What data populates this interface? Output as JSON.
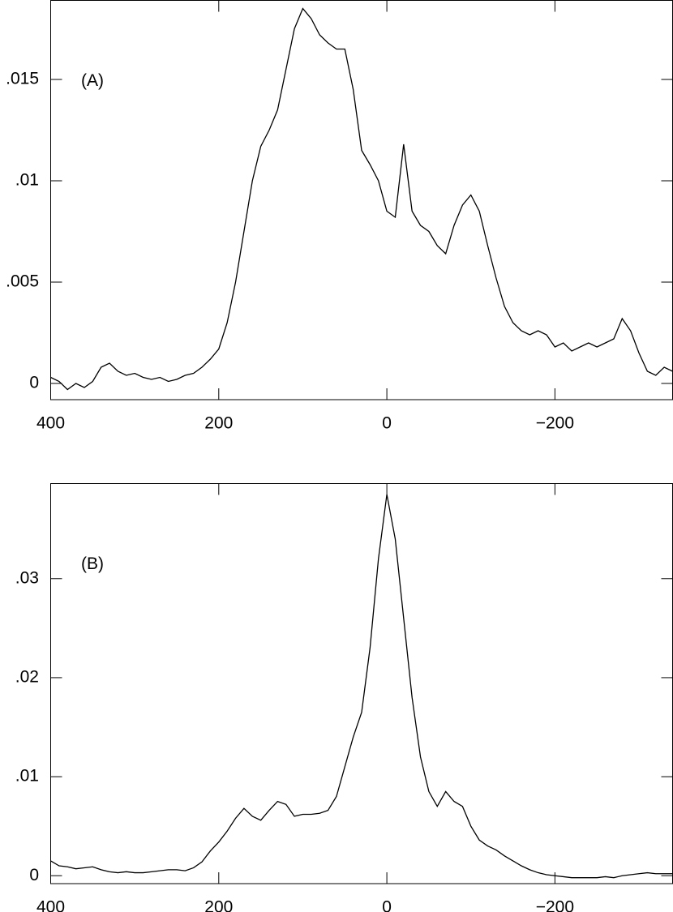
{
  "chart_data": [
    {
      "type": "line",
      "annotation": "(A)",
      "x": [
        400,
        390,
        380,
        370,
        360,
        350,
        340,
        330,
        320,
        310,
        300,
        290,
        280,
        270,
        260,
        250,
        240,
        230,
        220,
        210,
        200,
        190,
        180,
        170,
        160,
        150,
        140,
        130,
        120,
        110,
        100,
        90,
        80,
        70,
        60,
        50,
        40,
        30,
        20,
        10,
        0,
        -10,
        -20,
        -30,
        -40,
        -50,
        -60,
        -70,
        -80,
        -90,
        -100,
        -110,
        -120,
        -130,
        -140,
        -150,
        -160,
        -170,
        -180,
        -190,
        -200,
        -210,
        -220,
        -230,
        -240,
        -250,
        -260,
        -270,
        -280,
        -290,
        -300,
        -310,
        -320,
        -330,
        -340
      ],
      "values": [
        0.0003,
        0.0001,
        -0.0003,
        0,
        -0.0002,
        0.0001,
        0.0008,
        0.001,
        0.0006,
        0.0004,
        0.0005,
        0.0003,
        0.0002,
        0.0003,
        0.0001,
        0.0002,
        0.0004,
        0.0005,
        0.0008,
        0.0012,
        0.0017,
        0.003,
        0.005,
        0.0075,
        0.01,
        0.0117,
        0.0125,
        0.0135,
        0.0155,
        0.0175,
        0.0185,
        0.018,
        0.0172,
        0.0168,
        0.0165,
        0.0165,
        0.0145,
        0.0115,
        0.0108,
        0.01,
        0.0085,
        0.0082,
        0.0118,
        0.0085,
        0.0078,
        0.0075,
        0.0068,
        0.0064,
        0.0078,
        0.0088,
        0.0093,
        0.0085,
        0.0068,
        0.0052,
        0.0038,
        0.003,
        0.0026,
        0.0024,
        0.0026,
        0.0024,
        0.0018,
        0.002,
        0.0016,
        0.0018,
        0.002,
        0.0018,
        0.002,
        0.0022,
        0.0032,
        0.0026,
        0.0015,
        0.0006,
        0.0004,
        0.0008,
        0.0006
      ],
      "color": "#000000",
      "xlim": [
        400,
        -340
      ],
      "xticks": [
        400,
        200,
        0,
        {
          "value": -200,
          "label": "−200"
        }
      ],
      "ylim": [
        -0.0008,
        0.0189
      ],
      "yticks": [
        0,
        {
          "value": 0.005,
          "label": ".005"
        },
        {
          "value": 0.01,
          "label": ".01"
        },
        {
          "value": 0.015,
          "label": ".015"
        }
      ]
    },
    {
      "type": "line",
      "annotation": "(B)",
      "x": [
        400,
        390,
        380,
        370,
        360,
        350,
        340,
        330,
        320,
        310,
        300,
        290,
        280,
        270,
        260,
        250,
        240,
        230,
        220,
        210,
        200,
        190,
        180,
        170,
        160,
        150,
        140,
        130,
        120,
        110,
        100,
        90,
        80,
        70,
        60,
        50,
        40,
        30,
        20,
        10,
        0,
        -10,
        -20,
        -30,
        -40,
        -50,
        -60,
        -70,
        -80,
        -90,
        -100,
        -110,
        -120,
        -130,
        -140,
        -150,
        -160,
        -170,
        -180,
        -190,
        -200,
        -210,
        -220,
        -230,
        -240,
        -250,
        -260,
        -270,
        -280,
        -290,
        -300,
        -310,
        -320,
        -330,
        -340
      ],
      "values": [
        0.0015,
        0.001,
        0.0009,
        0.0007,
        0.0008,
        0.0009,
        0.0006,
        0.0004,
        0.0003,
        0.0004,
        0.0003,
        0.0003,
        0.0004,
        0.0005,
        0.0006,
        0.0006,
        0.0005,
        0.0008,
        0.0014,
        0.0025,
        0.0034,
        0.0045,
        0.0058,
        0.0068,
        0.006,
        0.0056,
        0.0066,
        0.0075,
        0.0072,
        0.006,
        0.0062,
        0.0062,
        0.0063,
        0.0066,
        0.008,
        0.011,
        0.014,
        0.0165,
        0.023,
        0.032,
        0.0385,
        0.034,
        0.026,
        0.018,
        0.012,
        0.0085,
        0.007,
        0.0085,
        0.0075,
        0.007,
        0.005,
        0.0036,
        0.003,
        0.0026,
        0.002,
        0.0015,
        0.001,
        0.0006,
        0.0003,
        0.0001,
        0,
        -0.0001,
        -0.0002,
        -0.0002,
        -0.0002,
        -0.0002,
        -0.0001,
        -0.0002,
        0,
        0.0001,
        0.0002,
        0.0003,
        0.0002,
        0.0002,
        0.0002
      ],
      "color": "#000000",
      "xlim": [
        400,
        -340
      ],
      "xticks": [
        400,
        200,
        0,
        {
          "value": -200,
          "label": "−200"
        }
      ],
      "ylim": [
        -0.0008,
        0.0396
      ],
      "yticks": [
        0,
        {
          "value": 0.01,
          "label": ".01"
        },
        {
          "value": 0.02,
          "label": ".02"
        },
        {
          "value": 0.03,
          "label": ".03"
        }
      ]
    }
  ]
}
